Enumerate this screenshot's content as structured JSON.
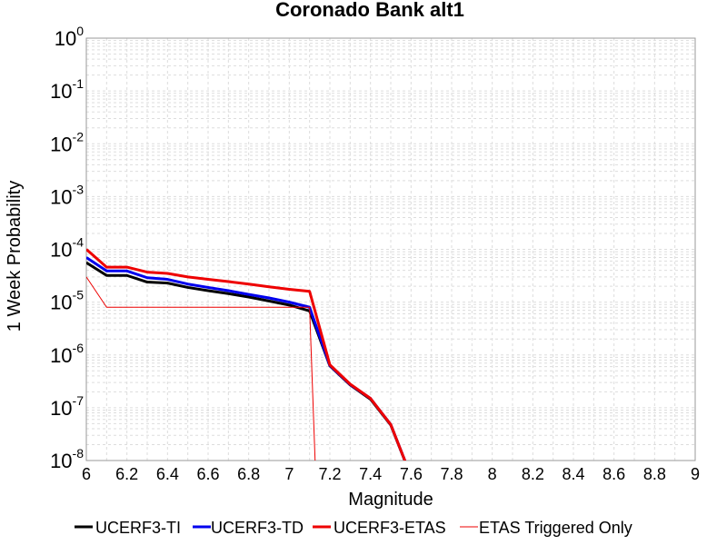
{
  "chart_data": {
    "type": "line",
    "title": "Coronado Bank alt1",
    "xlabel": "Magnitude",
    "ylabel": "1 Week Probability",
    "xlim": [
      6,
      9
    ],
    "ylim": [
      1e-08,
      1
    ],
    "yscale": "log",
    "grid": true,
    "legend_position": "bottom",
    "x_ticks": [
      "6",
      "6.2",
      "6.4",
      "6.6",
      "6.8",
      "7",
      "7.2",
      "7.4",
      "7.6",
      "7.8",
      "8",
      "8.2",
      "8.4",
      "8.6",
      "8.8",
      "9"
    ],
    "y_ticks": [
      {
        "base": "10",
        "exp": "-8",
        "value": 1e-08
      },
      {
        "base": "10",
        "exp": "-7",
        "value": 1e-07
      },
      {
        "base": "10",
        "exp": "-6",
        "value": 1e-06
      },
      {
        "base": "10",
        "exp": "-5",
        "value": 1e-05
      },
      {
        "base": "10",
        "exp": "-4",
        "value": 0.0001
      },
      {
        "base": "10",
        "exp": "-3",
        "value": 0.001
      },
      {
        "base": "10",
        "exp": "-2",
        "value": 0.01
      },
      {
        "base": "10",
        "exp": "-1",
        "value": 0.1
      },
      {
        "base": "10",
        "exp": "0",
        "value": 1
      }
    ],
    "series": [
      {
        "name": "UCERF3-TI",
        "color": "#000000",
        "width": 3,
        "x": [
          6.0,
          6.1,
          6.2,
          6.3,
          6.4,
          6.5,
          6.6,
          6.7,
          6.8,
          6.9,
          7.0,
          7.1,
          7.2,
          7.3,
          7.4,
          7.5,
          7.6
        ],
        "y": [
          5.6e-05,
          3.2e-05,
          3.2e-05,
          2.4e-05,
          2.3e-05,
          1.9e-05,
          1.65e-05,
          1.45e-05,
          1.25e-05,
          1.05e-05,
          8.8e-06,
          6.8e-06,
          6.2e-07,
          2.7e-07,
          1.45e-07,
          4.7e-08,
          5e-09
        ]
      },
      {
        "name": "UCERF3-TD",
        "color": "#0000ee",
        "width": 3,
        "x": [
          6.0,
          6.1,
          6.2,
          6.3,
          6.4,
          6.5,
          6.6,
          6.7,
          6.8,
          6.9,
          7.0,
          7.1,
          7.2,
          7.3,
          7.4,
          7.5,
          7.6
        ],
        "y": [
          7e-05,
          3.9e-05,
          3.9e-05,
          2.9e-05,
          2.7e-05,
          2.2e-05,
          1.9e-05,
          1.65e-05,
          1.4e-05,
          1.2e-05,
          1e-05,
          8e-06,
          6.3e-07,
          2.75e-07,
          1.5e-07,
          4.8e-08,
          5e-09
        ]
      },
      {
        "name": "UCERF3-ETAS",
        "color": "#ee0000",
        "width": 3,
        "x": [
          6.0,
          6.1,
          6.2,
          6.3,
          6.4,
          6.5,
          6.6,
          6.7,
          6.8,
          6.9,
          7.0,
          7.1,
          7.2,
          7.3,
          7.4,
          7.5,
          7.6
        ],
        "y": [
          0.0001,
          4.6e-05,
          4.6e-05,
          3.7e-05,
          3.5e-05,
          3e-05,
          2.7e-05,
          2.45e-05,
          2.2e-05,
          1.95e-05,
          1.75e-05,
          1.6e-05,
          6.5e-07,
          2.8e-07,
          1.5e-07,
          4.8e-08,
          5e-09
        ]
      },
      {
        "name": "ETAS Triggered Only",
        "color": "#ee0000",
        "width": 1,
        "x": [
          6.0,
          6.1,
          6.2,
          6.3,
          6.4,
          6.5,
          6.6,
          6.7,
          6.8,
          6.9,
          7.0,
          7.1,
          7.13
        ],
        "y": [
          3e-05,
          8e-06,
          8e-06,
          8e-06,
          8e-06,
          8e-06,
          8e-06,
          8e-06,
          8e-06,
          8e-06,
          8e-06,
          8e-06,
          5e-09
        ]
      }
    ]
  }
}
